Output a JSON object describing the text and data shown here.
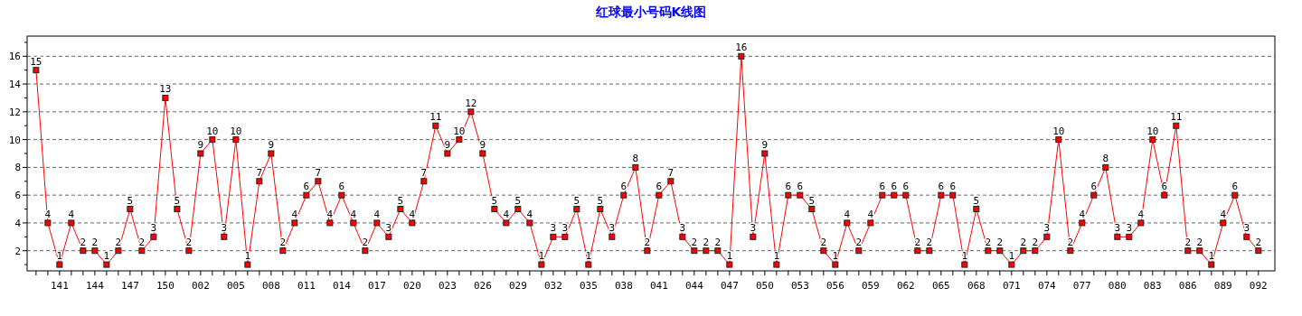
{
  "chart_data": {
    "type": "line",
    "title": "红球最小号码K线图",
    "categories": [
      null,
      null,
      "141",
      null,
      null,
      "144",
      null,
      null,
      "147",
      null,
      null,
      "150",
      null,
      null,
      "002",
      null,
      null,
      "005",
      null,
      null,
      "008",
      null,
      null,
      "011",
      null,
      null,
      "014",
      null,
      null,
      "017",
      null,
      null,
      "020",
      null,
      null,
      "023",
      null,
      null,
      "026",
      null,
      null,
      "029",
      null,
      null,
      "032",
      null,
      null,
      "035",
      null,
      null,
      "038",
      null,
      null,
      "041",
      null,
      null,
      "044",
      null,
      null,
      "047",
      null,
      null,
      "050",
      null,
      null,
      "053",
      null,
      null,
      "056",
      null,
      null,
      "059",
      null,
      null,
      "062",
      null,
      null,
      "065",
      null,
      null,
      "068",
      null,
      null,
      "071",
      null,
      null,
      "074",
      null,
      null,
      "077",
      null,
      null,
      "080",
      null,
      null,
      "083",
      null,
      null,
      "086",
      null,
      null,
      "089",
      null,
      null,
      "092"
    ],
    "series": [
      {
        "color": "#ff0000",
        "values": [
          15,
          4,
          1,
          4,
          2,
          2,
          1,
          2,
          5,
          2,
          3,
          13,
          5,
          2,
          9,
          10,
          3,
          10,
          1,
          7,
          9,
          2,
          4,
          6,
          7,
          4,
          6,
          4,
          2,
          4,
          3,
          5,
          4,
          7,
          11,
          9,
          10,
          12,
          9,
          5,
          4,
          5,
          4,
          1,
          3,
          3,
          5,
          1,
          5,
          3,
          6,
          8,
          2,
          6,
          7,
          3,
          2,
          2,
          2,
          1,
          16,
          3,
          9,
          1,
          6,
          6,
          5,
          2,
          1,
          4,
          2,
          4,
          6,
          6,
          6,
          2,
          2,
          6,
          6,
          1,
          5,
          2,
          2,
          1,
          2,
          2,
          3,
          10,
          2,
          4,
          6,
          8,
          3,
          3,
          4,
          10,
          6,
          11,
          2,
          2,
          1,
          4,
          6,
          3,
          2
        ]
      }
    ],
    "ylim": [
      0.55,
      17.45
    ],
    "yticks": [
      {
        "value": 1,
        "label": null
      },
      2,
      {
        "value": 3,
        "label": null
      },
      4,
      {
        "value": 5,
        "label": null
      },
      6,
      {
        "value": 7,
        "label": null
      },
      8,
      {
        "value": 9,
        "label": null
      },
      10,
      {
        "value": 11,
        "label": null
      },
      12,
      {
        "value": 13,
        "label": null
      },
      14,
      {
        "value": 15,
        "label": null
      },
      16,
      {
        "value": 17,
        "label": null
      }
    ],
    "grid": "y",
    "data_labels": true,
    "marker": "square",
    "line_style": "solid"
  }
}
